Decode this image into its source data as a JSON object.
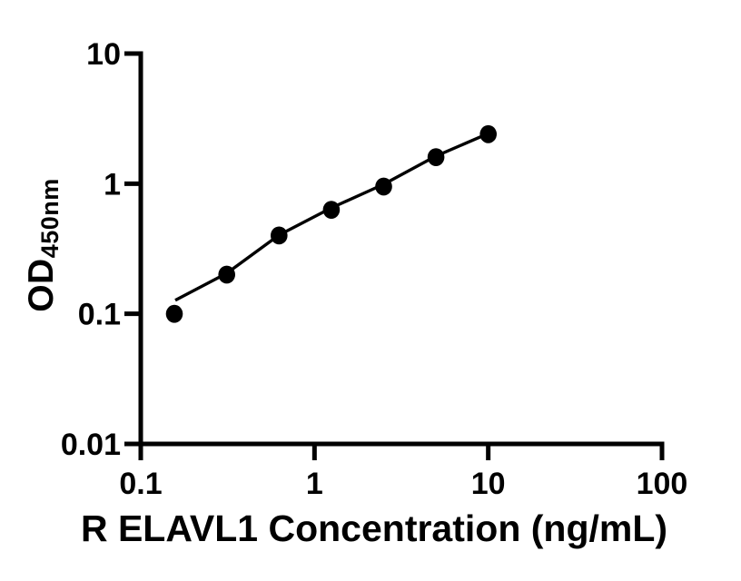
{
  "chart_data": {
    "type": "scatter",
    "title": "",
    "xlabel": "R ELAVL1 Concentration (ng/mL)",
    "ylabel_main": "OD",
    "ylabel_sub": "450nm",
    "x_scale": "log",
    "y_scale": "log",
    "xlim": [
      0.1,
      100
    ],
    "ylim": [
      0.01,
      10
    ],
    "grid": false,
    "legend": false,
    "background": "#ffffff",
    "axis_color": "#000000",
    "x_ticks": [
      {
        "v": 0.1,
        "label": "0.1"
      },
      {
        "v": 1,
        "label": "1"
      },
      {
        "v": 10,
        "label": "10"
      },
      {
        "v": 100,
        "label": "100"
      }
    ],
    "y_ticks": [
      {
        "v": 0.01,
        "label": "0.01"
      },
      {
        "v": 0.1,
        "label": "0.1"
      },
      {
        "v": 1,
        "label": "1"
      },
      {
        "v": 10,
        "label": "10"
      }
    ],
    "series": [
      {
        "name": "standard-curve-points",
        "marker": "filled-circle",
        "color": "#000000",
        "points": [
          {
            "x": 0.156,
            "y": 0.1
          },
          {
            "x": 0.3125,
            "y": 0.2
          },
          {
            "x": 0.625,
            "y": 0.4
          },
          {
            "x": 1.25,
            "y": 0.63
          },
          {
            "x": 2.5,
            "y": 0.95
          },
          {
            "x": 5,
            "y": 1.6
          },
          {
            "x": 10,
            "y": 2.4
          }
        ]
      }
    ],
    "trendline": {
      "name": "fitted-curve",
      "color": "#000000",
      "points": [
        {
          "x": 0.158,
          "y": 0.127
        },
        {
          "x": 0.3125,
          "y": 0.205
        },
        {
          "x": 0.625,
          "y": 0.403
        },
        {
          "x": 1.25,
          "y": 0.652
        },
        {
          "x": 2.5,
          "y": 0.99
        },
        {
          "x": 5,
          "y": 1.63
        },
        {
          "x": 10,
          "y": 2.43
        }
      ]
    }
  }
}
